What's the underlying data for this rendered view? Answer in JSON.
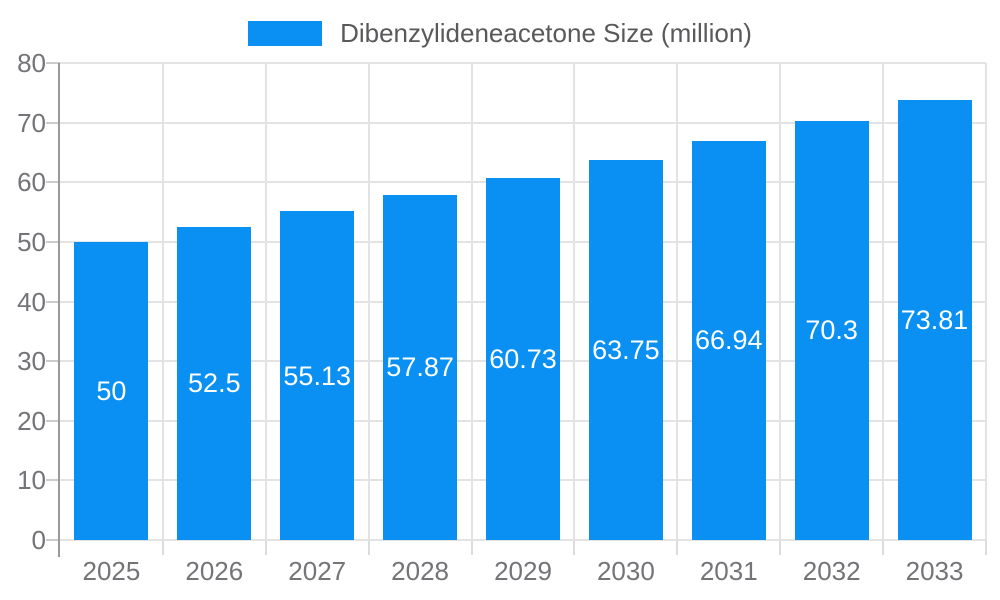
{
  "chart_data": {
    "type": "bar",
    "title": "Dibenzylideneacetone Size (million)",
    "categories": [
      "2025",
      "2026",
      "2027",
      "2028",
      "2029",
      "2030",
      "2031",
      "2032",
      "2033"
    ],
    "values": [
      50,
      52.5,
      55.13,
      57.87,
      60.73,
      63.75,
      66.94,
      70.3,
      73.81
    ],
    "value_labels": [
      "50",
      "52.5",
      "55.13",
      "57.87",
      "60.73",
      "63.75",
      "66.94",
      "70.3",
      "73.81"
    ],
    "xlabel": "",
    "ylabel": "",
    "ylim": [
      0,
      80
    ],
    "yticks": [
      0,
      10,
      20,
      30,
      40,
      50,
      60,
      70,
      80
    ],
    "grid": "on",
    "legend_position": "top"
  },
  "legend": {
    "label": "Dibenzylideneacetone Size (million)"
  },
  "colors": {
    "bar": "#0990f2",
    "gridline": "#e3e3e3",
    "axis_line": "#97999b",
    "tick": "#cccccc",
    "x_boundary_tick": "#dcdcdc",
    "axis_text": "#737477",
    "legend_text": "#58595b",
    "value_label": "#ffffff",
    "background": "#ffffff"
  }
}
